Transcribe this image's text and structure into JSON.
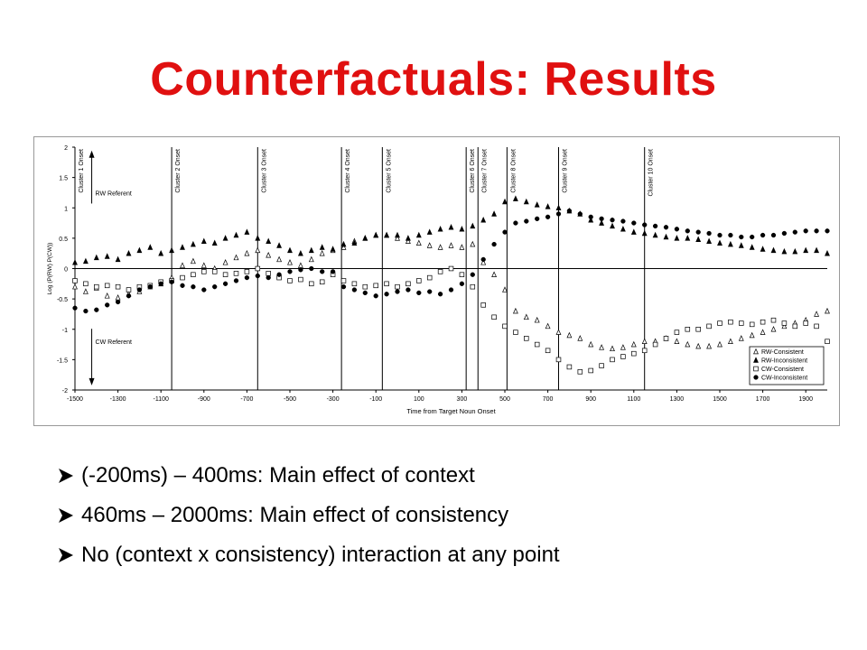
{
  "slide": {
    "title": "Counterfactuals: Results",
    "bullets": [
      "(-200ms) – 400ms: Main effect of context",
      "460ms – 2000ms: Main effect of consistency",
      "No (context x consistency) interaction at any point"
    ],
    "title_color": "#e01010"
  },
  "chart_data": {
    "type": "scatter",
    "xlabel": "Time from Target Noun Onset",
    "ylabel": "Log (P(RW) P(CW))",
    "xlim": [
      -1500,
      2000
    ],
    "ylim": [
      -2,
      2
    ],
    "x_ticks": [
      -1500,
      -1300,
      -1100,
      -900,
      -700,
      -500,
      -300,
      -100,
      100,
      300,
      500,
      700,
      900,
      1100,
      1300,
      1500,
      1700,
      1900
    ],
    "y_ticks": [
      2,
      1.5,
      1,
      0.5,
      0,
      -0.5,
      -1,
      -1.5,
      -2
    ],
    "y_tick_labels": [
      "2",
      "1.5",
      "1",
      "0.5",
      "0",
      "-0.5",
      "-1",
      "-1.5",
      "-2"
    ],
    "zero_line": true,
    "grid": false,
    "legend_position": "bottom-right",
    "cluster_onsets": [
      {
        "x": -1500,
        "label": "Cluster 1 Onset"
      },
      {
        "x": -1050,
        "label": "Cluster 2 Onset"
      },
      {
        "x": -650,
        "label": "Cluster 3 Onset"
      },
      {
        "x": -260,
        "label": "Cluster 4 Onset"
      },
      {
        "x": -70,
        "label": "Cluster 5 Onset"
      },
      {
        "x": 320,
        "label": "Cluster 6 Onset"
      },
      {
        "x": 375,
        "label": "Cluster 7 Onset"
      },
      {
        "x": 510,
        "label": "Cluster 8 Onset"
      },
      {
        "x": 750,
        "label": "Cluster 9 Onset"
      },
      {
        "x": 1150,
        "label": "Cluster 10 Onset"
      }
    ],
    "annotations": [
      {
        "text": "RW Referent",
        "x": -1380,
        "y": 1.25,
        "arrow": "up"
      },
      {
        "text": "CW Referent",
        "x": -1380,
        "y": -1.2,
        "arrow": "down"
      }
    ],
    "series": [
      {
        "name": "RW-Consistent",
        "marker": "triangle-open",
        "points": [
          [
            -1500,
            -0.3
          ],
          [
            -1450,
            -0.38
          ],
          [
            -1400,
            -0.32
          ],
          [
            -1350,
            -0.45
          ],
          [
            -1300,
            -0.48
          ],
          [
            -1250,
            -0.42
          ],
          [
            -1200,
            -0.38
          ],
          [
            -1150,
            -0.3
          ],
          [
            -1100,
            -0.25
          ],
          [
            -1050,
            -0.15
          ],
          [
            -1000,
            0.05
          ],
          [
            -950,
            0.12
          ],
          [
            -900,
            0.05
          ],
          [
            -850,
            0.0
          ],
          [
            -800,
            0.1
          ],
          [
            -750,
            0.18
          ],
          [
            -700,
            0.25
          ],
          [
            -650,
            0.3
          ],
          [
            -600,
            0.22
          ],
          [
            -550,
            0.15
          ],
          [
            -500,
            0.1
          ],
          [
            -450,
            0.05
          ],
          [
            -400,
            0.15
          ],
          [
            -350,
            0.25
          ],
          [
            -300,
            0.3
          ],
          [
            -250,
            0.35
          ],
          [
            -200,
            0.45
          ],
          [
            -150,
            0.5
          ],
          [
            -100,
            0.55
          ],
          [
            -50,
            0.55
          ],
          [
            0,
            0.5
          ],
          [
            50,
            0.45
          ],
          [
            100,
            0.42
          ],
          [
            150,
            0.38
          ],
          [
            200,
            0.35
          ],
          [
            250,
            0.38
          ],
          [
            300,
            0.35
          ],
          [
            350,
            0.4
          ],
          [
            400,
            0.1
          ],
          [
            450,
            -0.1
          ],
          [
            500,
            -0.35
          ],
          [
            550,
            -0.7
          ],
          [
            600,
            -0.8
          ],
          [
            650,
            -0.85
          ],
          [
            700,
            -0.95
          ],
          [
            750,
            -1.05
          ],
          [
            800,
            -1.1
          ],
          [
            850,
            -1.15
          ],
          [
            900,
            -1.25
          ],
          [
            950,
            -1.3
          ],
          [
            1000,
            -1.32
          ],
          [
            1050,
            -1.3
          ],
          [
            1100,
            -1.25
          ],
          [
            1150,
            -1.2
          ],
          [
            1200,
            -1.2
          ],
          [
            1250,
            -1.15
          ],
          [
            1300,
            -1.2
          ],
          [
            1350,
            -1.25
          ],
          [
            1400,
            -1.28
          ],
          [
            1450,
            -1.28
          ],
          [
            1500,
            -1.25
          ],
          [
            1550,
            -1.2
          ],
          [
            1600,
            -1.15
          ],
          [
            1650,
            -1.1
          ],
          [
            1700,
            -1.05
          ],
          [
            1750,
            -1.0
          ],
          [
            1800,
            -0.95
          ],
          [
            1850,
            -0.9
          ],
          [
            1900,
            -0.85
          ],
          [
            1950,
            -0.75
          ],
          [
            2000,
            -0.7
          ]
        ]
      },
      {
        "name": "RW-Inconsistent",
        "marker": "triangle-filled",
        "points": [
          [
            -1500,
            0.1
          ],
          [
            -1450,
            0.12
          ],
          [
            -1400,
            0.18
          ],
          [
            -1350,
            0.2
          ],
          [
            -1300,
            0.15
          ],
          [
            -1250,
            0.25
          ],
          [
            -1200,
            0.3
          ],
          [
            -1150,
            0.35
          ],
          [
            -1100,
            0.25
          ],
          [
            -1050,
            0.3
          ],
          [
            -1000,
            0.35
          ],
          [
            -950,
            0.4
          ],
          [
            -900,
            0.45
          ],
          [
            -850,
            0.42
          ],
          [
            -800,
            0.5
          ],
          [
            -750,
            0.55
          ],
          [
            -700,
            0.6
          ],
          [
            -650,
            0.5
          ],
          [
            -600,
            0.45
          ],
          [
            -550,
            0.38
          ],
          [
            -500,
            0.3
          ],
          [
            -450,
            0.25
          ],
          [
            -400,
            0.3
          ],
          [
            -350,
            0.35
          ],
          [
            -300,
            0.32
          ],
          [
            -250,
            0.4
          ],
          [
            -200,
            0.42
          ],
          [
            -150,
            0.5
          ],
          [
            -100,
            0.55
          ],
          [
            -50,
            0.55
          ],
          [
            0,
            0.55
          ],
          [
            50,
            0.5
          ],
          [
            100,
            0.55
          ],
          [
            150,
            0.6
          ],
          [
            200,
            0.65
          ],
          [
            250,
            0.68
          ],
          [
            300,
            0.65
          ],
          [
            350,
            0.7
          ],
          [
            400,
            0.8
          ],
          [
            450,
            0.9
          ],
          [
            500,
            1.1
          ],
          [
            550,
            1.15
          ],
          [
            600,
            1.1
          ],
          [
            650,
            1.05
          ],
          [
            700,
            1.02
          ],
          [
            750,
            1.0
          ],
          [
            800,
            0.95
          ],
          [
            850,
            0.9
          ],
          [
            900,
            0.8
          ],
          [
            950,
            0.75
          ],
          [
            1000,
            0.7
          ],
          [
            1050,
            0.65
          ],
          [
            1100,
            0.6
          ],
          [
            1150,
            0.58
          ],
          [
            1200,
            0.55
          ],
          [
            1250,
            0.52
          ],
          [
            1300,
            0.5
          ],
          [
            1350,
            0.5
          ],
          [
            1400,
            0.48
          ],
          [
            1450,
            0.45
          ],
          [
            1500,
            0.42
          ],
          [
            1550,
            0.4
          ],
          [
            1600,
            0.38
          ],
          [
            1650,
            0.35
          ],
          [
            1700,
            0.32
          ],
          [
            1750,
            0.3
          ],
          [
            1800,
            0.28
          ],
          [
            1850,
            0.28
          ],
          [
            1900,
            0.3
          ],
          [
            1950,
            0.3
          ],
          [
            2000,
            0.25
          ]
        ]
      },
      {
        "name": "CW-Consistent",
        "marker": "square-open",
        "points": [
          [
            -1500,
            -0.2
          ],
          [
            -1450,
            -0.25
          ],
          [
            -1400,
            -0.3
          ],
          [
            -1350,
            -0.28
          ],
          [
            -1300,
            -0.3
          ],
          [
            -1250,
            -0.35
          ],
          [
            -1200,
            -0.3
          ],
          [
            -1150,
            -0.28
          ],
          [
            -1100,
            -0.22
          ],
          [
            -1050,
            -0.2
          ],
          [
            -1000,
            -0.15
          ],
          [
            -950,
            -0.1
          ],
          [
            -900,
            -0.05
          ],
          [
            -850,
            -0.05
          ],
          [
            -800,
            -0.1
          ],
          [
            -750,
            -0.08
          ],
          [
            -700,
            -0.05
          ],
          [
            -650,
            0.0
          ],
          [
            -600,
            -0.08
          ],
          [
            -550,
            -0.15
          ],
          [
            -500,
            -0.2
          ],
          [
            -450,
            -0.18
          ],
          [
            -400,
            -0.25
          ],
          [
            -350,
            -0.22
          ],
          [
            -300,
            -0.1
          ],
          [
            -250,
            -0.2
          ],
          [
            -200,
            -0.25
          ],
          [
            -150,
            -0.3
          ],
          [
            -100,
            -0.28
          ],
          [
            -50,
            -0.25
          ],
          [
            0,
            -0.3
          ],
          [
            50,
            -0.25
          ],
          [
            100,
            -0.2
          ],
          [
            150,
            -0.15
          ],
          [
            200,
            -0.05
          ],
          [
            250,
            0.0
          ],
          [
            300,
            -0.1
          ],
          [
            350,
            -0.3
          ],
          [
            400,
            -0.6
          ],
          [
            450,
            -0.8
          ],
          [
            500,
            -0.95
          ],
          [
            550,
            -1.05
          ],
          [
            600,
            -1.15
          ],
          [
            650,
            -1.25
          ],
          [
            700,
            -1.35
          ],
          [
            750,
            -1.5
          ],
          [
            800,
            -1.62
          ],
          [
            850,
            -1.7
          ],
          [
            900,
            -1.68
          ],
          [
            950,
            -1.6
          ],
          [
            1000,
            -1.5
          ],
          [
            1050,
            -1.45
          ],
          [
            1100,
            -1.4
          ],
          [
            1150,
            -1.35
          ],
          [
            1200,
            -1.25
          ],
          [
            1250,
            -1.15
          ],
          [
            1300,
            -1.05
          ],
          [
            1350,
            -1.0
          ],
          [
            1400,
            -1.0
          ],
          [
            1450,
            -0.95
          ],
          [
            1500,
            -0.9
          ],
          [
            1550,
            -0.88
          ],
          [
            1600,
            -0.9
          ],
          [
            1650,
            -0.92
          ],
          [
            1700,
            -0.88
          ],
          [
            1750,
            -0.85
          ],
          [
            1800,
            -0.9
          ],
          [
            1850,
            -0.95
          ],
          [
            1900,
            -0.9
          ],
          [
            1950,
            -0.95
          ],
          [
            2000,
            -1.2
          ]
        ]
      },
      {
        "name": "CW-Inconsistent",
        "marker": "circle-filled",
        "points": [
          [
            -1500,
            -0.65
          ],
          [
            -1450,
            -0.7
          ],
          [
            -1400,
            -0.68
          ],
          [
            -1350,
            -0.6
          ],
          [
            -1300,
            -0.55
          ],
          [
            -1250,
            -0.45
          ],
          [
            -1200,
            -0.35
          ],
          [
            -1150,
            -0.3
          ],
          [
            -1100,
            -0.25
          ],
          [
            -1050,
            -0.22
          ],
          [
            -1000,
            -0.28
          ],
          [
            -950,
            -0.3
          ],
          [
            -900,
            -0.35
          ],
          [
            -850,
            -0.3
          ],
          [
            -800,
            -0.25
          ],
          [
            -750,
            -0.2
          ],
          [
            -700,
            -0.15
          ],
          [
            -650,
            -0.12
          ],
          [
            -600,
            -0.15
          ],
          [
            -550,
            -0.1
          ],
          [
            -500,
            -0.05
          ],
          [
            -450,
            -0.02
          ],
          [
            -400,
            0.0
          ],
          [
            -350,
            -0.05
          ],
          [
            -300,
            -0.05
          ],
          [
            -250,
            -0.3
          ],
          [
            -200,
            -0.35
          ],
          [
            -150,
            -0.4
          ],
          [
            -100,
            -0.45
          ],
          [
            -50,
            -0.42
          ],
          [
            0,
            -0.38
          ],
          [
            50,
            -0.35
          ],
          [
            100,
            -0.4
          ],
          [
            150,
            -0.38
          ],
          [
            200,
            -0.42
          ],
          [
            250,
            -0.35
          ],
          [
            300,
            -0.25
          ],
          [
            350,
            -0.1
          ],
          [
            400,
            0.15
          ],
          [
            450,
            0.4
          ],
          [
            500,
            0.6
          ],
          [
            550,
            0.75
          ],
          [
            600,
            0.78
          ],
          [
            650,
            0.82
          ],
          [
            700,
            0.85
          ],
          [
            750,
            0.9
          ],
          [
            800,
            0.95
          ],
          [
            850,
            0.9
          ],
          [
            900,
            0.85
          ],
          [
            950,
            0.82
          ],
          [
            1000,
            0.8
          ],
          [
            1050,
            0.78
          ],
          [
            1100,
            0.75
          ],
          [
            1150,
            0.72
          ],
          [
            1200,
            0.7
          ],
          [
            1250,
            0.68
          ],
          [
            1300,
            0.65
          ],
          [
            1350,
            0.62
          ],
          [
            1400,
            0.6
          ],
          [
            1450,
            0.58
          ],
          [
            1500,
            0.55
          ],
          [
            1550,
            0.55
          ],
          [
            1600,
            0.52
          ],
          [
            1650,
            0.52
          ],
          [
            1700,
            0.55
          ],
          [
            1750,
            0.55
          ],
          [
            1800,
            0.58
          ],
          [
            1850,
            0.6
          ],
          [
            1900,
            0.62
          ],
          [
            1950,
            0.62
          ],
          [
            2000,
            0.62
          ]
        ]
      }
    ]
  }
}
